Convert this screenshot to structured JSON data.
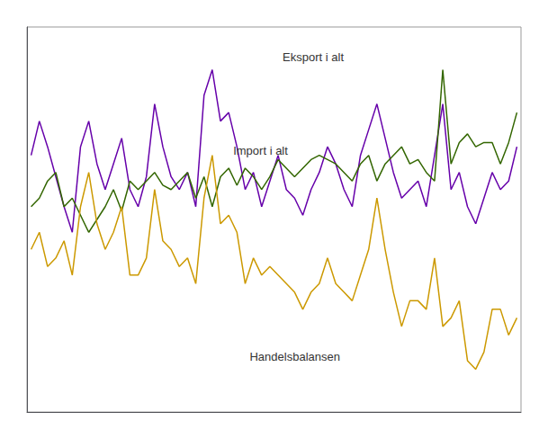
{
  "chart_data": {
    "type": "line",
    "categories": [
      null,
      null,
      null,
      null,
      null,
      null,
      null,
      null,
      null,
      null,
      null,
      null,
      null,
      null,
      null,
      null,
      null,
      null,
      null,
      null,
      null,
      null,
      null,
      null,
      null,
      null,
      null,
      null,
      null,
      null,
      null,
      null,
      null,
      null,
      null,
      null,
      null,
      null,
      null,
      null,
      null,
      null,
      null,
      null,
      null,
      null,
      null,
      null,
      null,
      null,
      null,
      null,
      null,
      null,
      null,
      null,
      null,
      null,
      null,
      null
    ],
    "series": [
      {
        "color": "#6600aa",
        "values": [
          70,
          78,
          72,
          65,
          58,
          52,
          72,
          78,
          68,
          62,
          68,
          74,
          62,
          58,
          65,
          82,
          72,
          65,
          62,
          66,
          58,
          84,
          90,
          78,
          80,
          72,
          62,
          66,
          58,
          64,
          70,
          62,
          60,
          56,
          62,
          66,
          72,
          68,
          62,
          58,
          70,
          76,
          82,
          74,
          66,
          60,
          62,
          64,
          58,
          70,
          82,
          62,
          66,
          58,
          54,
          60,
          66,
          62,
          64,
          72
        ]
      },
      {
        "color": "#336600",
        "values": [
          58,
          60,
          64,
          66,
          58,
          60,
          56,
          52,
          55,
          58,
          62,
          57,
          64,
          62,
          64,
          66,
          63,
          62,
          64,
          66,
          60,
          65,
          58,
          65,
          67,
          63,
          67,
          65,
          62,
          65,
          69,
          67,
          65,
          67,
          69,
          70,
          69,
          68,
          66,
          64,
          68,
          70,
          64,
          68,
          70,
          72,
          68,
          69,
          66,
          64,
          90,
          68,
          73,
          75,
          72,
          73,
          73,
          68,
          73,
          80
        ]
      },
      {
        "color": "#cc9900",
        "values": [
          48,
          52,
          44,
          46,
          50,
          42,
          58,
          66,
          54,
          48,
          52,
          58,
          42,
          42,
          46,
          62,
          50,
          48,
          44,
          46,
          40,
          60,
          70,
          54,
          56,
          52,
          40,
          46,
          42,
          44,
          42,
          40,
          38,
          34,
          38,
          40,
          46,
          40,
          38,
          36,
          42,
          48,
          60,
          48,
          38,
          30,
          36,
          36,
          34,
          46,
          30,
          32,
          36,
          22,
          20,
          24,
          34,
          34,
          28,
          32
        ]
      }
    ],
    "annotations": [
      {
        "text": "Eksport i alt",
        "x": 30,
        "y": 93
      },
      {
        "text": "Import i alt",
        "x": 24,
        "y": 71
      },
      {
        "text": "Handelsbalansen",
        "x": 26,
        "y": 23
      }
    ],
    "ylim": [
      10,
      100
    ],
    "grid": false,
    "tick_labels": false
  }
}
